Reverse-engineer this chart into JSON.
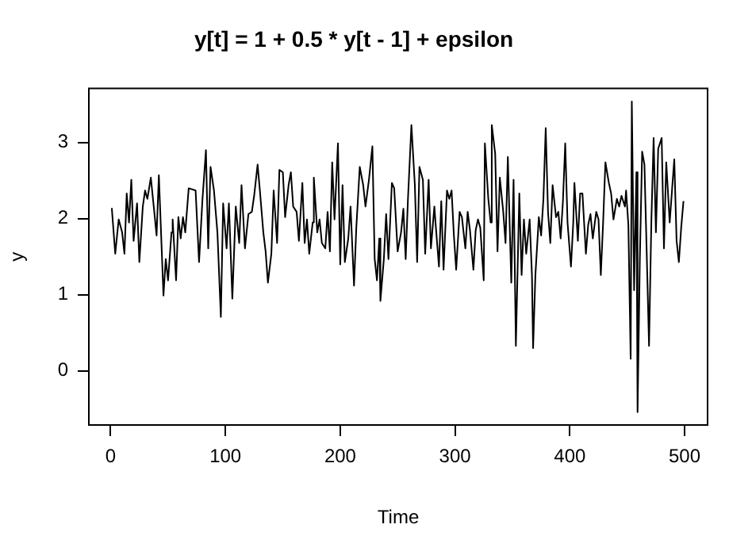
{
  "chart_data": {
    "type": "line",
    "title": "y[t] = 1 + 0.5 * y[t - 1] + epsilon",
    "xlabel": "Time",
    "ylabel": "y",
    "xlim": [
      -19,
      520
    ],
    "ylim": [
      -0.71,
      3.71
    ],
    "xticks": [
      0,
      100,
      200,
      300,
      400,
      500
    ],
    "yticks": [
      0,
      1,
      2,
      3
    ],
    "grid": false,
    "legend": false,
    "marker": "none",
    "line_style": "solid",
    "x": [
      1,
      4,
      7,
      10,
      12,
      14,
      16,
      18,
      20,
      23,
      25,
      28,
      30,
      32,
      35,
      38,
      40,
      42,
      46,
      48,
      50,
      53,
      54,
      57,
      59,
      61,
      63,
      65,
      68,
      74,
      77,
      80,
      83,
      85,
      87,
      90,
      93,
      96,
      98,
      101,
      103,
      106,
      109,
      112,
      114,
      117,
      120,
      123,
      125,
      128,
      130,
      133,
      135,
      137,
      140,
      142,
      145,
      147,
      150,
      152,
      155,
      157,
      159,
      162,
      164,
      167,
      169,
      171,
      173,
      176,
      177,
      180,
      182,
      184,
      187,
      189,
      191,
      193,
      195,
      198,
      200,
      202,
      204,
      207,
      209,
      212,
      214,
      217,
      220,
      222,
      225,
      228,
      230,
      232,
      234,
      235,
      238,
      240,
      242,
      245,
      247,
      250,
      253,
      255,
      257,
      259,
      262,
      265,
      267,
      269,
      272,
      274,
      277,
      279,
      282,
      283,
      286,
      288,
      290,
      293,
      295,
      297,
      299,
      301,
      304,
      306,
      309,
      311,
      313,
      316,
      318,
      320,
      322,
      325,
      326,
      329,
      331,
      332,
      335,
      337,
      339,
      342,
      344,
      346,
      349,
      351,
      353,
      356,
      358,
      360,
      362,
      365,
      367,
      368,
      370,
      373,
      375,
      377,
      379,
      381,
      383,
      385,
      388,
      390,
      392,
      394,
      396,
      398,
      401,
      403,
      404,
      407,
      409,
      411,
      414,
      416,
      418,
      420,
      423,
      425,
      427,
      429,
      431,
      434,
      436,
      438,
      441,
      443,
      445,
      448,
      449,
      451,
      453,
      454,
      456,
      458,
      459,
      461,
      463,
      465,
      467,
      469,
      471,
      473,
      475,
      477,
      480,
      482,
      484,
      487,
      489,
      491,
      493,
      495,
      497,
      499
    ],
    "values": [
      2.14,
      1.54,
      1.99,
      1.82,
      1.54,
      2.33,
      1.95,
      2.51,
      1.71,
      2.2,
      1.43,
      2.16,
      2.37,
      2.26,
      2.54,
      2.09,
      1.78,
      2.57,
      0.99,
      1.47,
      1.19,
      1.82,
      1.99,
      1.19,
      2.02,
      1.74,
      2.02,
      1.82,
      2.4,
      2.37,
      1.43,
      2.26,
      2.9,
      1.61,
      2.68,
      2.37,
      1.82,
      0.71,
      2.2,
      1.61,
      2.2,
      0.95,
      2.16,
      1.68,
      2.44,
      1.61,
      2.06,
      2.09,
      2.3,
      2.71,
      2.37,
      1.82,
      1.57,
      1.16,
      1.54,
      2.37,
      1.68,
      2.64,
      2.61,
      2.02,
      2.44,
      2.61,
      2.16,
      2.09,
      1.71,
      2.47,
      1.68,
      1.99,
      1.54,
      1.95,
      2.54,
      1.82,
      1.99,
      1.68,
      1.61,
      2.09,
      1.57,
      2.74,
      1.99,
      2.99,
      1.4,
      2.44,
      1.43,
      1.74,
      2.16,
      1.12,
      1.88,
      2.68,
      2.44,
      2.16,
      2.51,
      2.95,
      1.47,
      1.19,
      1.74,
      0.92,
      1.47,
      2.06,
      1.47,
      2.47,
      2.4,
      1.57,
      1.82,
      2.13,
      1.47,
      2.26,
      3.23,
      2.44,
      1.43,
      2.68,
      2.51,
      1.54,
      2.51,
      1.61,
      2.16,
      1.95,
      1.37,
      2.23,
      1.33,
      2.37,
      2.26,
      2.37,
      1.78,
      1.33,
      2.09,
      2.02,
      1.61,
      2.09,
      1.85,
      1.33,
      1.85,
      1.99,
      1.88,
      1.19,
      2.99,
      2.26,
      1.95,
      3.23,
      2.85,
      1.57,
      2.54,
      2.09,
      1.68,
      2.81,
      1.16,
      2.51,
      0.33,
      2.33,
      1.26,
      1.99,
      1.54,
      1.99,
      1.26,
      0.3,
      1.26,
      2.02,
      1.78,
      2.26,
      3.19,
      2.09,
      1.68,
      2.44,
      2.02,
      2.09,
      1.74,
      2.23,
      2.99,
      1.95,
      1.37,
      1.95,
      2.47,
      1.71,
      2.33,
      2.33,
      1.54,
      1.92,
      2.06,
      1.74,
      2.09,
      1.99,
      1.26,
      1.95,
      2.74,
      2.47,
      2.33,
      1.99,
      2.26,
      2.16,
      2.3,
      2.16,
      2.37,
      1.92,
      0.16,
      3.54,
      1.06,
      2.61,
      -0.54,
      1.47,
      2.88,
      2.71,
      1.54,
      0.33,
      1.95,
      3.06,
      1.82,
      2.92,
      3.06,
      1.61,
      2.74,
      1.95,
      2.37,
      2.78,
      1.71,
      1.43,
      1.88,
      2.23
    ],
    "color": "#000000"
  }
}
